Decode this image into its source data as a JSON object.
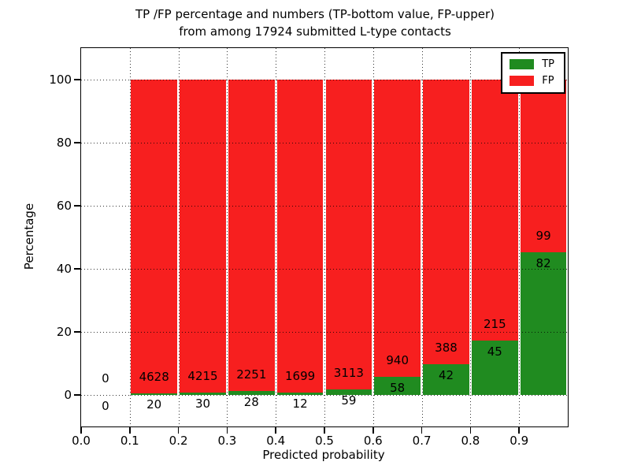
{
  "chart_data": {
    "type": "bar",
    "stacked": true,
    "title": "TP /FP percentage and numbers (TP-bottom value, FP-upper)\nfrom among 17924 submitted L-type contacts",
    "title_line1": "TP /FP percentage and numbers (TP-bottom value, FP-upper)",
    "title_line2": "from among 17924 submitted L-type contacts",
    "xlabel": "Predicted probability",
    "ylabel": "Percentage",
    "xlim": [
      0.0,
      1.0
    ],
    "ylim": [
      -10,
      110
    ],
    "grid": "dotted",
    "x_tick_values": [
      0.0,
      0.1,
      0.2,
      0.3,
      0.4,
      0.5,
      0.6,
      0.7,
      0.8,
      0.9
    ],
    "x_ticks": [
      "0.0",
      "0.1",
      "0.2",
      "0.3",
      "0.4",
      "0.5",
      "0.6",
      "0.7",
      "0.8",
      "0.9"
    ],
    "y_tick_values": [
      0,
      20,
      40,
      60,
      80,
      100
    ],
    "y_ticks": [
      "0",
      "20",
      "40",
      "60",
      "80",
      "100"
    ],
    "colors": {
      "tp": "#208b20",
      "fp": "#f71f1f"
    },
    "legend": {
      "position": "upper right",
      "entries": [
        {
          "label": "TP",
          "color": "#208b20"
        },
        {
          "label": "FP",
          "color": "#f71f1f"
        }
      ]
    },
    "series": [
      {
        "name": "TP",
        "values": [
          0,
          20,
          30,
          28,
          12,
          59,
          58,
          42,
          45,
          82
        ]
      },
      {
        "name": "FP",
        "values": [
          0,
          4628,
          4215,
          2251,
          1699,
          3113,
          940,
          388,
          215,
          99
        ]
      }
    ],
    "bins": [
      {
        "range": [
          0.0,
          0.1
        ],
        "tp": 0,
        "fp": 0,
        "tp_pct": 0,
        "bar": false
      },
      {
        "range": [
          0.1,
          0.2
        ],
        "tp": 20,
        "fp": 4628,
        "tp_pct": 0.43,
        "bar": true
      },
      {
        "range": [
          0.2,
          0.3
        ],
        "tp": 30,
        "fp": 4215,
        "tp_pct": 0.71,
        "bar": true
      },
      {
        "range": [
          0.3,
          0.4
        ],
        "tp": 28,
        "fp": 2251,
        "tp_pct": 1.23,
        "bar": true
      },
      {
        "range": [
          0.4,
          0.5
        ],
        "tp": 12,
        "fp": 1699,
        "tp_pct": 0.7,
        "bar": true
      },
      {
        "range": [
          0.5,
          0.6
        ],
        "tp": 59,
        "fp": 3113,
        "tp_pct": 1.86,
        "bar": true
      },
      {
        "range": [
          0.6,
          0.7
        ],
        "tp": 58,
        "fp": 940,
        "tp_pct": 5.81,
        "bar": true
      },
      {
        "range": [
          0.7,
          0.8
        ],
        "tp": 42,
        "fp": 388,
        "tp_pct": 9.77,
        "bar": true
      },
      {
        "range": [
          0.8,
          0.9
        ],
        "tp": 45,
        "fp": 215,
        "tp_pct": 17.31,
        "bar": true
      },
      {
        "range": [
          0.9,
          1.0
        ],
        "tp": 82,
        "fp": 99,
        "tp_pct": 45.3,
        "bar": true
      }
    ]
  }
}
